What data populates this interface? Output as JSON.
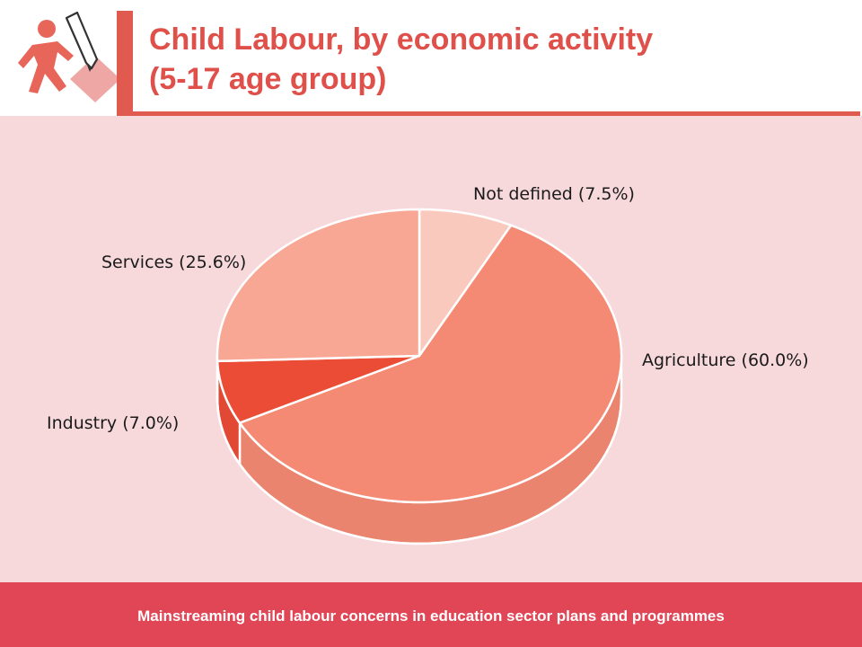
{
  "header": {
    "title_line1": "Child Labour, by economic activity",
    "title_line2": "(5-17 age group)"
  },
  "footer": {
    "text": "Mainstreaming child labour concerns in education sector plans and programmes"
  },
  "colors": {
    "accent": "#e05a4f",
    "background": "#f7d9dc",
    "footer": "#e14656"
  },
  "chart_data": {
    "type": "pie",
    "style": "3d",
    "categories": [
      "Not defined",
      "Agriculture",
      "Industry",
      "Services"
    ],
    "values": [
      7.5,
      60.0,
      7.0,
      25.6
    ],
    "labels": [
      "Not defined (7.5%)",
      "Agriculture (60.0%)",
      "Industry (7.0%)",
      "Services (25.6%)"
    ],
    "colors": [
      "#f9c9be",
      "#f48a73",
      "#ea4c36",
      "#f7a793"
    ]
  }
}
